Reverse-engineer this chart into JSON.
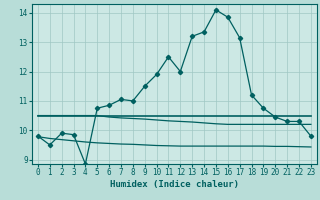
{
  "xlabel": "Humidex (Indice chaleur)",
  "bg_color": "#b8ddd8",
  "plot_bg_color": "#cce8e4",
  "grid_color": "#a0c8c4",
  "line_color": "#006060",
  "xlim": [
    -0.5,
    23.5
  ],
  "ylim": [
    8.85,
    14.3
  ],
  "yticks": [
    9,
    10,
    11,
    12,
    13,
    14
  ],
  "xticks": [
    0,
    1,
    2,
    3,
    4,
    5,
    6,
    7,
    8,
    9,
    10,
    11,
    12,
    13,
    14,
    15,
    16,
    17,
    18,
    19,
    20,
    21,
    22,
    23
  ],
  "line1_x": [
    0,
    1,
    2,
    3,
    4,
    5,
    6,
    7,
    8,
    9,
    10,
    11,
    12,
    13,
    14,
    15,
    16,
    17,
    18,
    19,
    20,
    21,
    22,
    23
  ],
  "line1_y": [
    9.8,
    9.5,
    9.9,
    9.85,
    8.85,
    10.75,
    10.85,
    11.05,
    11.0,
    11.5,
    11.9,
    12.5,
    12.0,
    13.2,
    13.35,
    14.1,
    13.85,
    13.15,
    11.2,
    10.75,
    10.45,
    10.3,
    10.3,
    9.8
  ],
  "line2_x": [
    0,
    1,
    2,
    3,
    4,
    5,
    6,
    7,
    8,
    9,
    10,
    11,
    12,
    13,
    14,
    15,
    16,
    17,
    18,
    19,
    20,
    21,
    22,
    23
  ],
  "line2_y": [
    10.5,
    10.5,
    10.5,
    10.5,
    10.5,
    10.5,
    10.5,
    10.5,
    10.5,
    10.5,
    10.5,
    10.5,
    10.5,
    10.5,
    10.5,
    10.5,
    10.5,
    10.5,
    10.5,
    10.5,
    10.5,
    10.5,
    10.5,
    10.5
  ],
  "line3_x": [
    0,
    1,
    2,
    3,
    4,
    5,
    6,
    7,
    8,
    9,
    10,
    11,
    12,
    13,
    14,
    15,
    16,
    17,
    18,
    19,
    20,
    21,
    22,
    23
  ],
  "line3_y": [
    10.5,
    10.5,
    10.5,
    10.5,
    10.5,
    10.5,
    10.45,
    10.42,
    10.4,
    10.38,
    10.35,
    10.32,
    10.3,
    10.28,
    10.25,
    10.22,
    10.2,
    10.2,
    10.2,
    10.2,
    10.2,
    10.2,
    10.2,
    10.2
  ],
  "line4_x": [
    0,
    1,
    2,
    3,
    4,
    5,
    6,
    7,
    8,
    9,
    10,
    11,
    12,
    13,
    14,
    15,
    16,
    17,
    18,
    19,
    20,
    21,
    22,
    23
  ],
  "line4_y": [
    9.78,
    9.72,
    9.68,
    9.64,
    9.6,
    9.57,
    9.55,
    9.53,
    9.52,
    9.5,
    9.48,
    9.47,
    9.46,
    9.46,
    9.46,
    9.46,
    9.46,
    9.46,
    9.46,
    9.46,
    9.45,
    9.45,
    9.44,
    9.43
  ]
}
